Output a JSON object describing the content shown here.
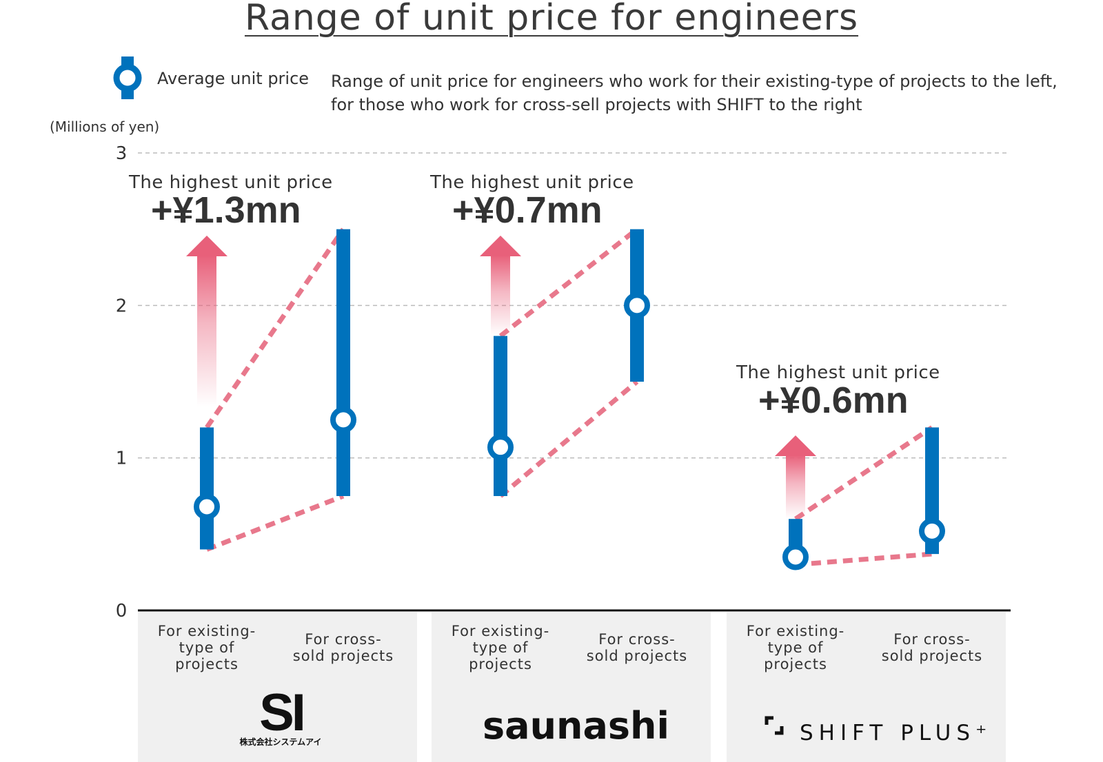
{
  "title": "Range of unit price for engineers",
  "legend": {
    "label": "Average unit price",
    "marker_color": "#0072BC"
  },
  "description": [
    "Range of unit price for engineers who work for their existing-type of projects to the left,",
    "for those who work for cross-sell projects with SHIFT to the right"
  ],
  "unit_label": "(Millions of yen)",
  "colors": {
    "bar": "#0072BC",
    "dash": "#E8788C",
    "arrow": "#E8607A",
    "panel": "#F0F0F0"
  },
  "chart_data": {
    "type": "range",
    "title": "Range of unit price for engineers",
    "ylabel": "(Millions of yen)",
    "ylim": [
      0,
      3
    ],
    "yticks": [
      "0",
      "1",
      "2",
      "3"
    ],
    "grid": true,
    "legend_position": "top-left",
    "groups": [
      {
        "brand": "SI",
        "brand_subtext": "株式会社システムアイ",
        "annotation": {
          "label": "The highest unit price",
          "value": "+¥1.3mn"
        },
        "bars": [
          {
            "category": "For existing-\ntype of\nprojects",
            "min": 0.4,
            "max": 1.2,
            "average": 0.68
          },
          {
            "category": "For cross-\nsold projects",
            "min": 0.75,
            "max": 2.5,
            "average": 1.25
          }
        ]
      },
      {
        "brand": "saunashi",
        "annotation": {
          "label": "The highest unit price",
          "value": "+¥0.7mn"
        },
        "bars": [
          {
            "category": "For existing-\ntype of\nprojects",
            "min": 0.75,
            "max": 1.8,
            "average": 1.07
          },
          {
            "category": "For cross-\nsold projects",
            "min": 1.5,
            "max": 2.5,
            "average": 2.0
          }
        ]
      },
      {
        "brand": "SHIFT PLUS⁺",
        "annotation": {
          "label": "The highest unit price",
          "value": "+¥0.6mn"
        },
        "bars": [
          {
            "category": "For existing-\ntype of\nprojects",
            "min": 0.3,
            "max": 0.6,
            "average": 0.35
          },
          {
            "category": "For cross-\nsold projects",
            "min": 0.37,
            "max": 1.2,
            "average": 0.52
          }
        ]
      }
    ]
  }
}
